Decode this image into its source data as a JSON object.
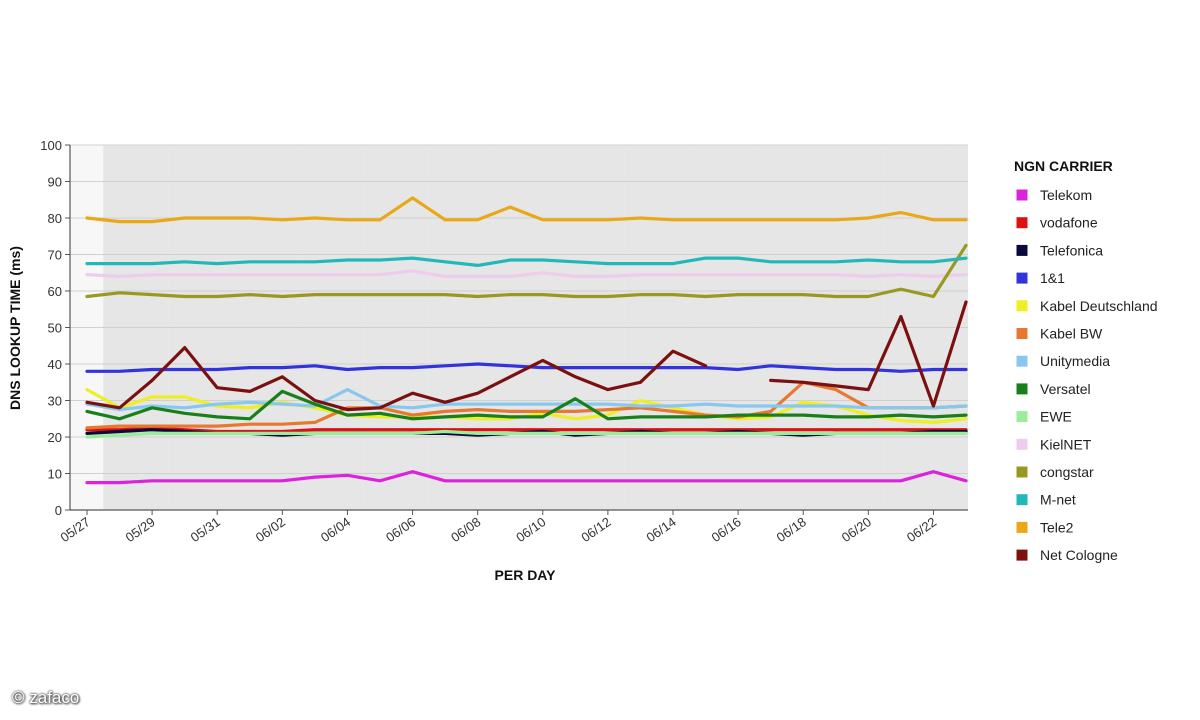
{
  "watermark": "© zafaco",
  "chart_data": {
    "type": "line",
    "title": "",
    "xlabel": "PER DAY",
    "ylabel": "DNS LOOKUP TIME (ms)",
    "ylim": [
      0,
      100
    ],
    "yticks": [
      0,
      10,
      20,
      30,
      40,
      50,
      60,
      70,
      80,
      90,
      100
    ],
    "grid": true,
    "legend_title": "NGN CARRIER",
    "legend_position": "right",
    "x": [
      "05/27",
      "05/28",
      "05/29",
      "05/30",
      "05/31",
      "06/01",
      "06/02",
      "06/03",
      "06/04",
      "06/05",
      "06/06",
      "06/07",
      "06/08",
      "06/09",
      "06/10",
      "06/11",
      "06/12",
      "06/13",
      "06/14",
      "06/15",
      "06/16",
      "06/17",
      "06/18",
      "06/19",
      "06/20",
      "06/21",
      "06/22",
      "06/23"
    ],
    "x_tick_labels": [
      "05/27",
      "05/29",
      "05/31",
      "06/02",
      "06/04",
      "06/06",
      "06/08",
      "06/10",
      "06/12",
      "06/14",
      "06/16",
      "06/18",
      "06/20",
      "06/22"
    ],
    "series": [
      {
        "name": "Telekom",
        "color": "#dd22dd",
        "values": [
          7.5,
          7.5,
          8,
          8,
          8,
          8,
          8,
          9,
          9.5,
          8,
          10.5,
          8,
          8,
          8,
          8,
          8,
          8,
          8,
          8,
          8,
          8,
          8,
          8,
          8,
          8,
          8,
          10.5,
          8
        ]
      },
      {
        "name": "vodafone",
        "color": "#dd1111",
        "values": [
          22,
          22,
          22.5,
          22,
          21.5,
          21.5,
          21.5,
          22,
          22,
          22,
          22,
          22,
          22,
          22,
          22,
          22,
          22,
          22,
          22,
          22,
          22,
          22,
          22,
          22,
          22,
          22,
          22,
          22
        ]
      },
      {
        "name": "Telefonica",
        "color": "#0a0a3a",
        "values": [
          21,
          21.5,
          22,
          21.5,
          21,
          21,
          20.5,
          21,
          21,
          21,
          21,
          21,
          20.5,
          21,
          21.5,
          20.5,
          21,
          21.5,
          21,
          21,
          21.5,
          21,
          20.5,
          21,
          21,
          21,
          21.5,
          21.5
        ]
      },
      {
        "name": "1&1",
        "color": "#3333dd",
        "values": [
          38,
          38,
          38.5,
          38.5,
          38.5,
          39,
          39,
          39.5,
          38.5,
          39,
          39,
          39.5,
          40,
          39.5,
          39,
          39,
          39,
          39,
          39,
          39,
          38.5,
          39.5,
          39,
          38.5,
          38.5,
          38,
          38.5,
          38.5
        ]
      },
      {
        "name": "Kabel Deutschland",
        "color": "#eeee22",
        "values": [
          33,
          28,
          31,
          31,
          28.5,
          28,
          29.5,
          28,
          26,
          25.5,
          25.5,
          25.5,
          25,
          25,
          26.5,
          25,
          26,
          30,
          28,
          26,
          25,
          25.5,
          29.5,
          28.5,
          26,
          24.5,
          24,
          25
        ]
      },
      {
        "name": "Kabel BW",
        "color": "#e87830",
        "values": [
          22.5,
          23,
          23,
          23,
          23,
          23.5,
          23.5,
          24,
          28,
          28,
          26,
          27,
          27.5,
          27,
          27,
          27,
          27.5,
          28,
          27,
          26,
          25.5,
          27,
          35,
          33,
          28,
          28,
          28,
          28.5
        ]
      },
      {
        "name": "Unitymedia",
        "color": "#88c8ee",
        "values": [
          29,
          27.5,
          28.5,
          28,
          29,
          29.5,
          29,
          28.5,
          33,
          28.5,
          28,
          29,
          29,
          29,
          29,
          29,
          29,
          28.5,
          28.5,
          29,
          28.5,
          28.5,
          28.5,
          28.5,
          28,
          28,
          28,
          28.5
        ]
      },
      {
        "name": "Versatel",
        "color": "#18801a",
        "values": [
          27,
          25,
          28,
          26.5,
          25.5,
          25,
          32.5,
          29,
          26,
          26.5,
          25,
          25.5,
          26,
          25.5,
          25.5,
          30.5,
          25,
          25.5,
          25.5,
          25.5,
          26,
          26,
          26,
          25.5,
          25.5,
          26,
          25.5,
          26
        ]
      },
      {
        "name": "EWE",
        "color": "#99ee99",
        "values": [
          20,
          20.5,
          21,
          21,
          21,
          21,
          21,
          21,
          21,
          21,
          21,
          21.5,
          21,
          21,
          21,
          21,
          21,
          21,
          21,
          21,
          21,
          21,
          21,
          21,
          21,
          21,
          21,
          21
        ]
      },
      {
        "name": "KielNET",
        "color": "#eeccee",
        "values": [
          64.5,
          64,
          64.5,
          64.5,
          64.5,
          64.5,
          64.5,
          64.5,
          64.5,
          64.5,
          65.5,
          64,
          64,
          64,
          65,
          64,
          64,
          64.5,
          64.5,
          64.5,
          64.5,
          64.5,
          64.5,
          64.5,
          64,
          64.5,
          64,
          64.5
        ]
      },
      {
        "name": "congstar",
        "color": "#999922",
        "values": [
          58.5,
          59.5,
          59,
          58.5,
          58.5,
          59,
          58.5,
          59,
          59,
          59,
          59,
          59,
          58.5,
          59,
          59,
          58.5,
          58.5,
          59,
          59,
          58.5,
          59,
          59,
          59,
          58.5,
          58.5,
          60.5,
          58.5,
          72.5
        ]
      },
      {
        "name": "M-net",
        "color": "#22b8b8",
        "values": [
          67.5,
          67.5,
          67.5,
          68,
          67.5,
          68,
          68,
          68,
          68.5,
          68.5,
          69,
          68,
          67,
          68.5,
          68.5,
          68,
          67.5,
          67.5,
          67.5,
          69,
          69,
          68,
          68,
          68,
          68.5,
          68,
          68,
          69
        ]
      },
      {
        "name": "Tele2",
        "color": "#e8a818",
        "values": [
          80,
          79,
          79,
          80,
          80,
          80,
          79.5,
          80,
          79.5,
          79.5,
          85.5,
          79.5,
          79.5,
          83,
          79.5,
          79.5,
          79.5,
          80,
          79.5,
          79.5,
          79.5,
          79.5,
          79.5,
          79.5,
          80,
          81.5,
          79.5,
          79.5
        ]
      },
      {
        "name": "Net Cologne",
        "color": "#7a1010",
        "values": [
          29.5,
          28,
          35.5,
          44.5,
          33.5,
          32.5,
          36.5,
          30,
          27.5,
          28,
          32,
          29.5,
          32,
          36.5,
          41,
          36.5,
          33,
          35,
          43.5,
          39.5,
          null,
          35.5,
          35,
          34,
          33,
          53,
          28.5,
          57
        ]
      }
    ]
  }
}
